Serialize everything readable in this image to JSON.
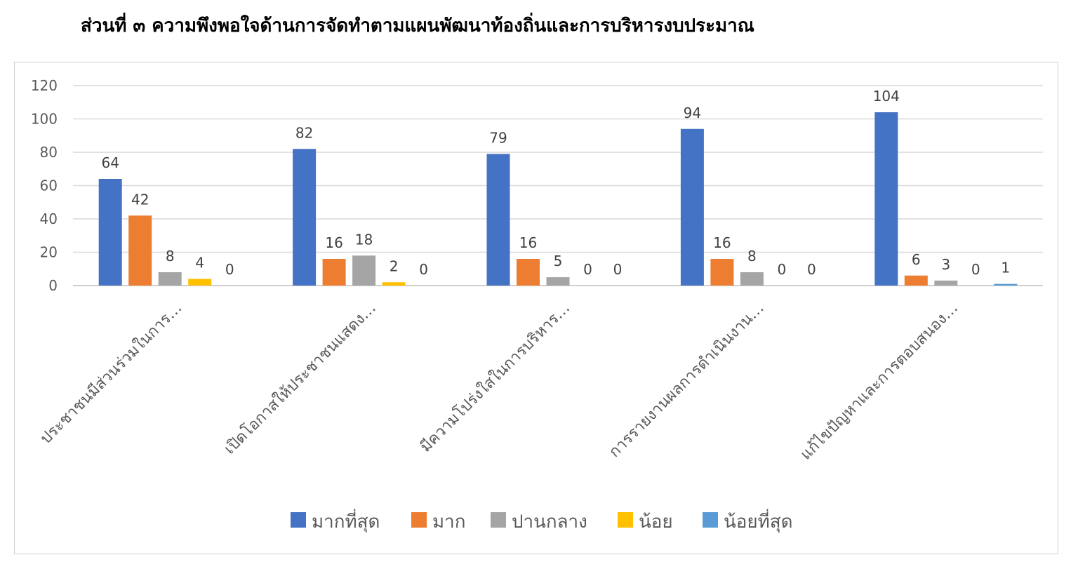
{
  "title": "ส่วนที่ ๓ ความพึงพอใจด้านการจัดทำตามแผนพัฒนาท้องถิ่นและการบริหารงบประมาณ",
  "chart_data": {
    "type": "bar",
    "categories": [
      "ประชาชนมีส่วนร่วมในการ…",
      "เปิดโอกาสให้ประชาชนแสดง…",
      "มีความโปร่งใสในการบริหาร…",
      "การรายงานผลการดำเนินงาน…",
      "แก้ไขปัญหาและการตอบสนอง…"
    ],
    "series": [
      {
        "name": "มากที่สุด",
        "color": "#4472C4",
        "values": [
          64,
          82,
          79,
          94,
          104
        ]
      },
      {
        "name": "มาก",
        "color": "#ED7D31",
        "values": [
          42,
          16,
          16,
          16,
          6
        ]
      },
      {
        "name": "ปานกลาง",
        "color": "#A5A5A5",
        "values": [
          8,
          18,
          5,
          8,
          3
        ]
      },
      {
        "name": "น้อย",
        "color": "#FFC000",
        "values": [
          4,
          2,
          0,
          0,
          0
        ]
      },
      {
        "name": "น้อยที่สุด",
        "color": "#5B9BD5",
        "values": [
          0,
          0,
          0,
          0,
          1
        ]
      }
    ],
    "ylim": [
      0,
      120
    ],
    "yticks": [
      0,
      20,
      40,
      60,
      80,
      100,
      120
    ],
    "grid": true,
    "legend": "bottom",
    "data_labels": true
  }
}
